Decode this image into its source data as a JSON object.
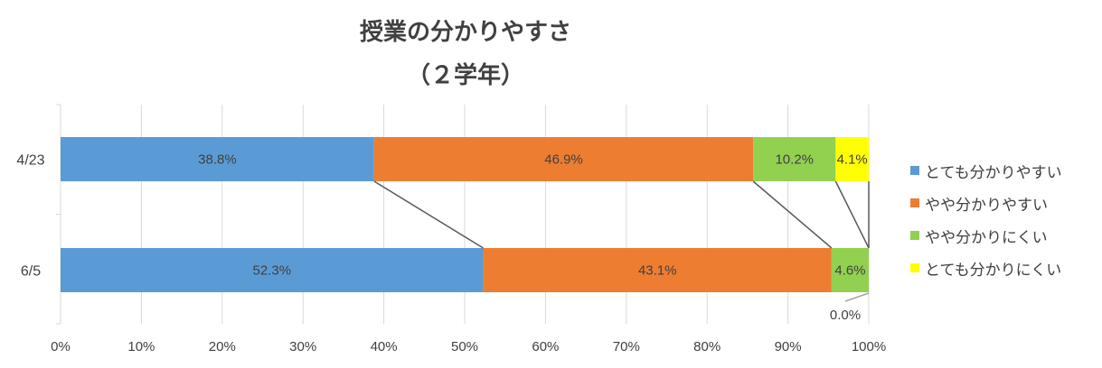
{
  "chart_data": {
    "type": "bar",
    "orientation": "horizontal",
    "stacked": "percent",
    "title": "授業の分かりやすさ",
    "subtitle": "（２学年）",
    "categories": [
      "4/23",
      "6/5"
    ],
    "series": [
      {
        "name": "とても分かりやすい",
        "color": "#5B9BD5",
        "values": [
          38.8,
          52.3
        ]
      },
      {
        "name": "やや分かりやすい",
        "color": "#ED7D31",
        "values": [
          46.9,
          43.1
        ]
      },
      {
        "name": "やや分かりにくい",
        "color": "#92D050",
        "values": [
          10.2,
          4.6
        ]
      },
      {
        "name": "とても分かりにくい",
        "color": "#FFFF00",
        "values": [
          4.1,
          0.0
        ]
      }
    ],
    "data_labels": [
      [
        "38.8%",
        "46.9%",
        "10.2%",
        "4.1%"
      ],
      [
        "52.3%",
        "43.1%",
        "4.6%",
        "0.0%"
      ]
    ],
    "x_ticks": [
      "0%",
      "10%",
      "20%",
      "30%",
      "40%",
      "50%",
      "60%",
      "70%",
      "80%",
      "90%",
      "100%"
    ],
    "xlim": [
      0,
      100
    ],
    "grid": true,
    "series_lines": true,
    "legend_position": "right"
  }
}
